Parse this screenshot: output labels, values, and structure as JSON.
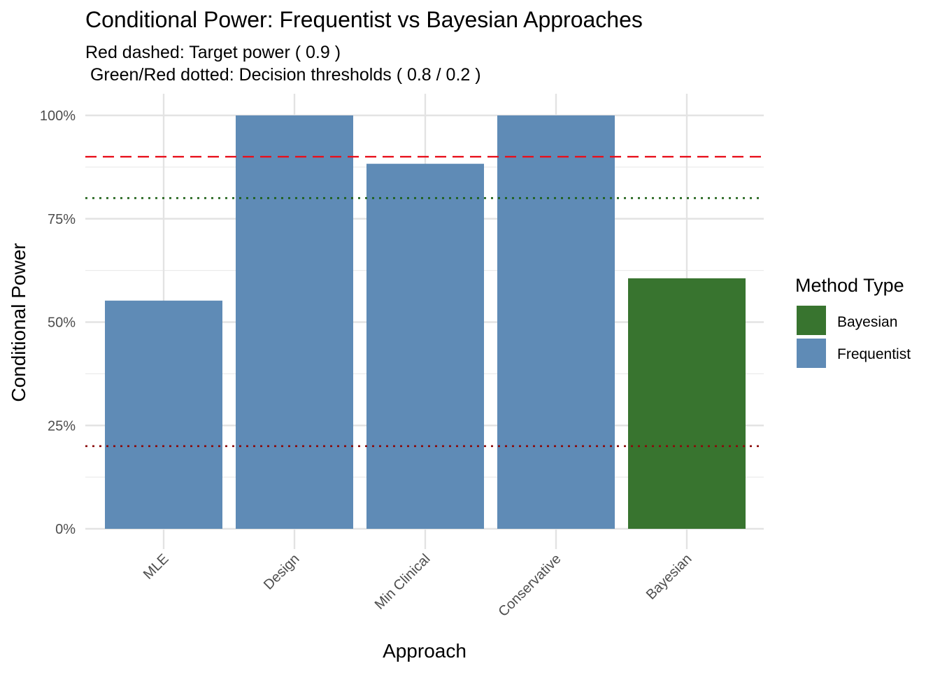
{
  "chart_data": {
    "type": "bar",
    "title": "Conditional Power: Frequentist vs Bayesian Approaches",
    "subtitle_lines": [
      "Red dashed: Target power ( 0.9 )",
      " Green/Red dotted: Decision thresholds ( 0.8 / 0.2 )"
    ],
    "xlabel": "Approach",
    "ylabel": "Conditional Power",
    "categories": [
      "MLE",
      "Design",
      "Min Clinical",
      "Conservative",
      "Bayesian"
    ],
    "values": [
      0.552,
      1.0,
      0.883,
      1.0,
      0.606
    ],
    "method_types": [
      "Frequentist",
      "Frequentist",
      "Frequentist",
      "Frequentist",
      "Bayesian"
    ],
    "ylim": [
      0,
      1
    ],
    "yticks": [
      0,
      0.25,
      0.5,
      0.75,
      1.0
    ],
    "ytick_labels": [
      "0%",
      "25%",
      "50%",
      "75%",
      "100%"
    ],
    "reference_lines": [
      {
        "value": 0.9,
        "style": "dashed",
        "color": "#e8101c"
      },
      {
        "value": 0.8,
        "style": "dotted",
        "color": "#1a5e12"
      },
      {
        "value": 0.2,
        "style": "dotted",
        "color": "#8b0a0a"
      }
    ],
    "legend": {
      "title": "Method Type",
      "placement": "right",
      "entries": [
        {
          "label": "Bayesian",
          "color": "#38742f"
        },
        {
          "label": "Frequentist",
          "color": "#5f8bb6"
        }
      ]
    },
    "grid": true
  }
}
